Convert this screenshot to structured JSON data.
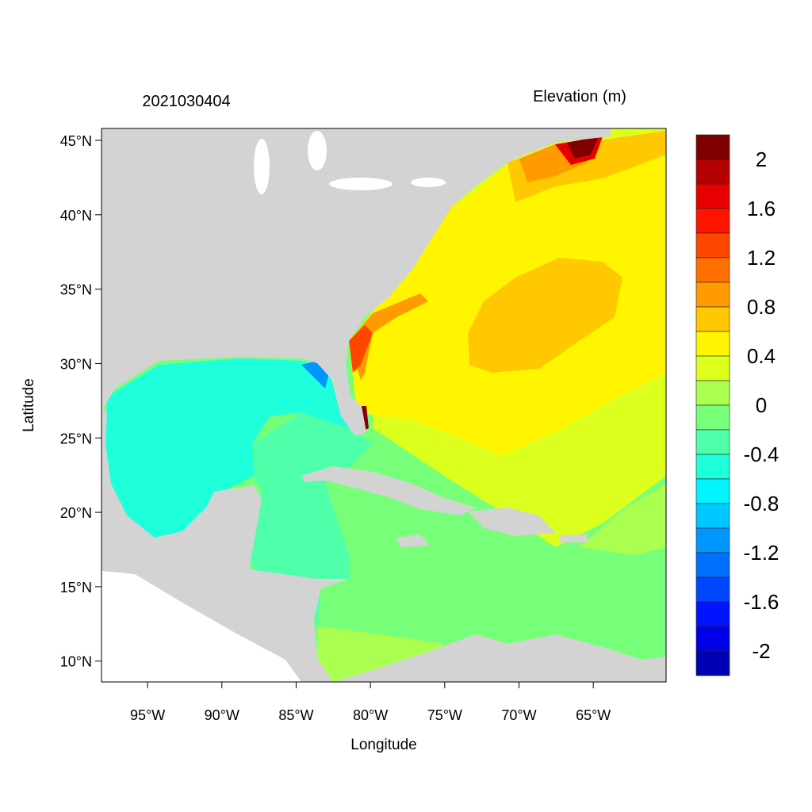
{
  "title_left": "2021030404",
  "title_right": "Elevation (m)",
  "xlabel": "Longitude",
  "ylabel": "Latitude",
  "lon_ticks": [
    {
      "value": -95,
      "label": "95°W"
    },
    {
      "value": -90,
      "label": "90°W"
    },
    {
      "value": -85,
      "label": "85°W"
    },
    {
      "value": -80,
      "label": "80°W"
    },
    {
      "value": -75,
      "label": "75°W"
    },
    {
      "value": -70,
      "label": "70°W"
    },
    {
      "value": -65,
      "label": "65°W"
    }
  ],
  "lat_ticks": [
    {
      "value": 45,
      "label": "45°N"
    },
    {
      "value": 40,
      "label": "40°N"
    },
    {
      "value": 35,
      "label": "35°N"
    },
    {
      "value": 30,
      "label": "30°N"
    },
    {
      "value": 25,
      "label": "25°N"
    },
    {
      "value": 20,
      "label": "20°N"
    },
    {
      "value": 15,
      "label": "15°N"
    },
    {
      "value": 10,
      "label": "10°N"
    }
  ],
  "lon_range": [
    -98.1,
    -60.1
  ],
  "lat_range": [
    8.6,
    45.8
  ],
  "colorbar": {
    "boundaries": [
      2.2,
      2.0,
      1.8,
      1.6,
      1.4,
      1.2,
      1.0,
      0.8,
      0.6,
      0.4,
      0.2,
      0.0,
      -0.2,
      -0.4,
      -0.6,
      -0.8,
      -1.0,
      -1.2,
      -1.4,
      -1.6,
      -1.8,
      -2.0,
      -2.2
    ],
    "colors": [
      "#800000",
      "#B40000",
      "#E60000",
      "#FF1400",
      "#FF4600",
      "#FF7000",
      "#FF9A00",
      "#FFC800",
      "#FFF500",
      "#DCFF1E",
      "#AAFF50",
      "#78FF7A",
      "#50FFAA",
      "#1EFFDC",
      "#00F5FF",
      "#00C8FF",
      "#0096FF",
      "#0070FF",
      "#0046FF",
      "#0014FF",
      "#0000E6",
      "#0000B4"
    ],
    "labels": [
      {
        "value": 2,
        "label": "2"
      },
      {
        "value": 1.6,
        "label": "1.6"
      },
      {
        "value": 1.2,
        "label": "1.2"
      },
      {
        "value": 0.8,
        "label": "0.8"
      },
      {
        "value": 0.4,
        "label": "0.4"
      },
      {
        "value": 0,
        "label": "0"
      },
      {
        "value": -0.4,
        "label": "-0.4"
      },
      {
        "value": -0.8,
        "label": "-0.8"
      },
      {
        "value": -1.2,
        "label": "-1.2"
      },
      {
        "value": -1.6,
        "label": "-1.6"
      },
      {
        "value": -2,
        "label": "-2"
      }
    ]
  },
  "colors": {
    "land": "#D3D3D3",
    "outside": "#FFFFFF"
  }
}
